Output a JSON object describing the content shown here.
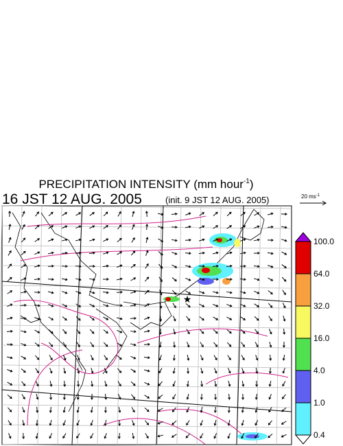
{
  "header": {
    "title": "PRECIPITATION INTENSITY (mm hour",
    "title_superscript": "-1",
    "title_end": ")",
    "valid_time": "16 JST 12 AUG. 2005",
    "init_time": "(init. 9 JST 12 AUG. 2005)"
  },
  "reference_arrow": {
    "label": "20 ms",
    "label_superscript": "-1"
  },
  "colorbar": {
    "levels": [
      "100.0",
      "64.0",
      "32.0",
      "16.0",
      "4.0",
      "1.0",
      "0.4"
    ],
    "colors": [
      "#e00000",
      "#f8a040",
      "#f8f860",
      "#50e050",
      "#6060f0",
      "#60f0ff"
    ],
    "over_color": "#a000e0",
    "under_color": "#ffffff"
  }
}
